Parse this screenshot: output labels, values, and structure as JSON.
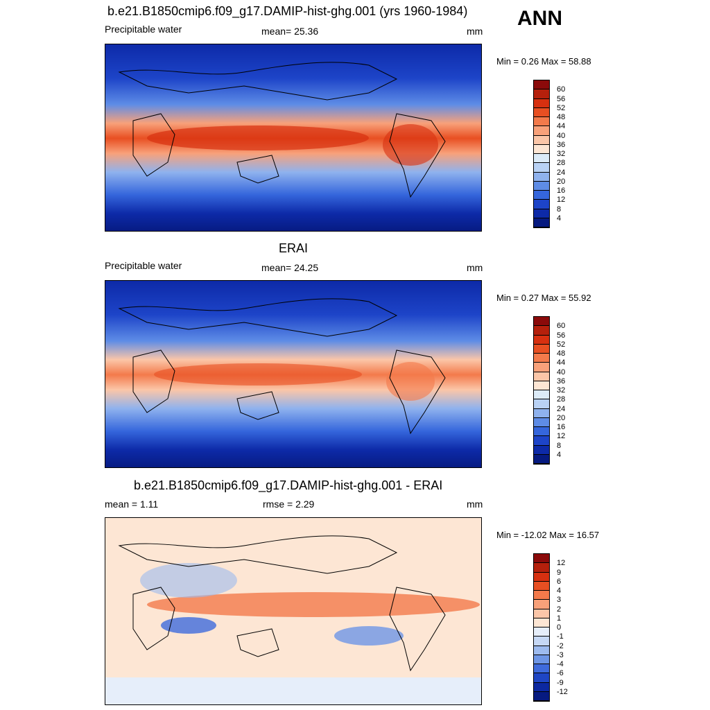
{
  "season": "ANN",
  "panels": [
    {
      "title": "b.e21.B1850cmip6.f09_g17.DAMIP-hist-ghg.001 (yrs 1960-1984)",
      "left_label": "Precipitable water",
      "center_label": "mean=  25.36",
      "units": "mm",
      "minmax": "Min =   0.26 Max =  58.88",
      "colorbar": {
        "ticks": [
          "60",
          "56",
          "52",
          "48",
          "44",
          "40",
          "36",
          "32",
          "28",
          "24",
          "20",
          "16",
          "12",
          "8",
          "4"
        ],
        "colors": [
          "#8b0a0a",
          "#b5200c",
          "#d73010",
          "#e84f22",
          "#f37a4b",
          "#f8a17a",
          "#fbc6a8",
          "#fde6d4",
          "#dcebf8",
          "#b9d2f5",
          "#8fb2ee",
          "#5e8ce6",
          "#3566dc",
          "#1d44c8",
          "#0d2aa8",
          "#061a80"
        ]
      }
    },
    {
      "title": "ERAI",
      "left_label": "Precipitable water",
      "center_label": "mean=  24.25",
      "units": "mm",
      "minmax": "Min =   0.27 Max =  55.92",
      "colorbar": {
        "ticks": [
          "60",
          "56",
          "52",
          "48",
          "44",
          "40",
          "36",
          "32",
          "28",
          "24",
          "20",
          "16",
          "12",
          "8",
          "4"
        ],
        "colors": [
          "#8b0a0a",
          "#b5200c",
          "#d73010",
          "#e84f22",
          "#f37a4b",
          "#f8a17a",
          "#fbc6a8",
          "#fde6d4",
          "#dcebf8",
          "#b9d2f5",
          "#8fb2ee",
          "#5e8ce6",
          "#3566dc",
          "#1d44c8",
          "#0d2aa8",
          "#061a80"
        ]
      }
    },
    {
      "title": "b.e21.B1850cmip6.f09_g17.DAMIP-hist-ghg.001 - ERAI",
      "left_label": "mean =   1.11",
      "center_label": "rmse =   2.29",
      "units": "mm",
      "minmax": "Min = -12.02 Max =  16.57",
      "colorbar": {
        "ticks": [
          "12",
          "9",
          "6",
          "4",
          "3",
          "2",
          "1",
          "0",
          "-1",
          "-2",
          "-3",
          "-4",
          "-6",
          "-9",
          "-12"
        ],
        "colors": [
          "#8b0a0a",
          "#b5200c",
          "#d73010",
          "#e84f22",
          "#f37a4b",
          "#f8a17a",
          "#fbc6a8",
          "#fde6d4",
          "#e6eefa",
          "#c6d8f5",
          "#9dbbef",
          "#6e96e6",
          "#3f6bdc",
          "#1f46c4",
          "#0c28a0",
          "#061a80"
        ]
      }
    }
  ]
}
